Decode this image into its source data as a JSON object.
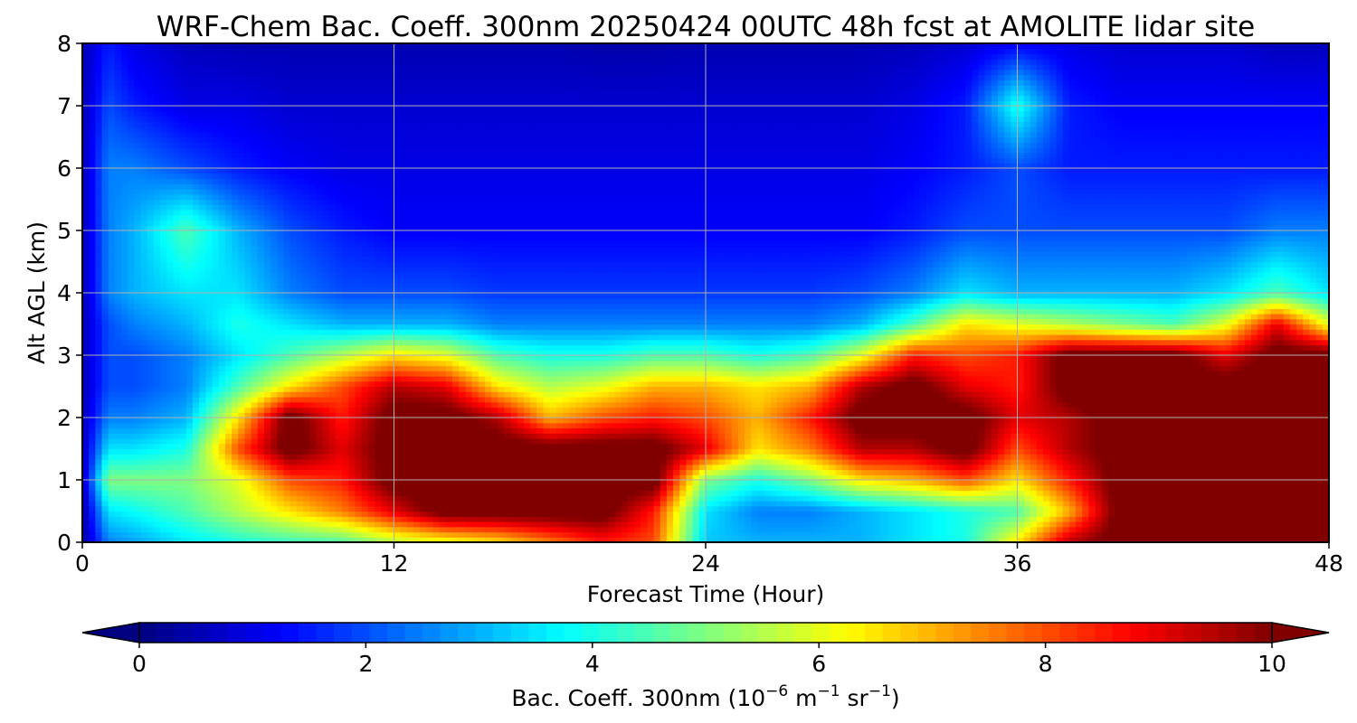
{
  "chart_data": {
    "type": "heatmap",
    "title": "WRF-Chem Bac. Coeff. 300nm  20250424 00UTC 48h fcst at AMOLITE lidar site",
    "xlabel": "Forecast Time (Hour)",
    "ylabel": "Alt AGL (km)",
    "xlim": [
      0,
      48
    ],
    "ylim": [
      0,
      8
    ],
    "x_ticks": [
      0,
      12,
      24,
      36,
      48
    ],
    "y_ticks": [
      0,
      1,
      2,
      3,
      4,
      5,
      6,
      7,
      8
    ],
    "grid": true,
    "colormap": "jet",
    "colorbar": {
      "label_main": "Bac. Coeff. 300nm  (10",
      "exp1": "−6",
      "label_mid": " m",
      "exp2": "−1",
      "label_end": " sr",
      "exp3": "−1",
      "label_close": ")",
      "min": 0,
      "max": 10,
      "ticks": [
        0,
        2,
        4,
        6,
        8,
        10
      ],
      "extend": "both",
      "orientation": "horizontal"
    },
    "x_hours": [
      0,
      1,
      2,
      4,
      6,
      8,
      10,
      12,
      14,
      16,
      18,
      20,
      22,
      24,
      26,
      28,
      30,
      32,
      34,
      36,
      38,
      40,
      42,
      44,
      46,
      48
    ],
    "altitudes_km": [
      0,
      0.5,
      1,
      1.5,
      2,
      2.5,
      3,
      3.5,
      4,
      5,
      6,
      7,
      8
    ],
    "values": [
      [
        0.3,
        2.5,
        2.8,
        3.5,
        4.0,
        4.3,
        4.5,
        5.5,
        6.0,
        6.5,
        7.5,
        8.5,
        8.0,
        3.2,
        3.0,
        3.0,
        3.0,
        3.5,
        4.0,
        6.5,
        9.5,
        10.5,
        10.5,
        10.5,
        10.5,
        10.5
      ],
      [
        0.3,
        3.5,
        3.8,
        4.5,
        5.5,
        6.5,
        7.5,
        9.0,
        10.5,
        10.5,
        10.5,
        10.5,
        8.5,
        3.5,
        2.5,
        2.5,
        3.0,
        3.5,
        4.0,
        4.5,
        7.0,
        10.5,
        10.5,
        10.5,
        10.5,
        10.5
      ],
      [
        0.5,
        5.0,
        5.0,
        5.0,
        6.0,
        8.0,
        8.5,
        10.5,
        10.5,
        10.5,
        10.5,
        10.5,
        10.5,
        5.0,
        4.0,
        5.0,
        6.5,
        7.0,
        8.0,
        6.5,
        8.5,
        10.5,
        10.5,
        10.5,
        10.5,
        10.5
      ],
      [
        0.5,
        3.5,
        3.5,
        4.0,
        8.0,
        10.5,
        9.0,
        10.5,
        10.5,
        10.5,
        10.5,
        10.5,
        10.5,
        9.0,
        6.5,
        7.5,
        9.5,
        9.5,
        10.5,
        8.0,
        9.5,
        10.5,
        10.5,
        10.5,
        10.5,
        10.5
      ],
      [
        0.5,
        2.5,
        2.5,
        3.0,
        6.5,
        10.5,
        8.5,
        10.5,
        10.5,
        9.5,
        7.0,
        8.0,
        8.5,
        8.0,
        7.0,
        8.5,
        10.5,
        10.5,
        10.5,
        9.0,
        9.5,
        10.5,
        10.5,
        10.5,
        10.5,
        10.5
      ],
      [
        0.5,
        2.0,
        2.0,
        2.5,
        4.5,
        6.5,
        8.0,
        9.5,
        9.0,
        6.5,
        5.5,
        6.0,
        7.0,
        7.0,
        6.5,
        7.0,
        9.5,
        10.5,
        9.0,
        8.5,
        10.5,
        10.5,
        10.5,
        10.5,
        10.5,
        10.5
      ],
      [
        0.5,
        2.0,
        2.0,
        2.5,
        3.5,
        4.5,
        5.5,
        6.5,
        6.0,
        4.5,
        4.0,
        4.0,
        4.5,
        4.5,
        4.0,
        4.5,
        6.0,
        8.5,
        8.0,
        8.5,
        10.5,
        10.5,
        10.5,
        9.0,
        10.5,
        10.5
      ],
      [
        0.5,
        2.0,
        2.5,
        3.0,
        4.0,
        3.5,
        3.0,
        3.0,
        3.0,
        2.5,
        2.5,
        2.5,
        2.5,
        2.5,
        2.5,
        2.5,
        3.0,
        4.5,
        6.5,
        6.0,
        5.5,
        5.0,
        4.5,
        6.0,
        9.0,
        6.0
      ],
      [
        0.5,
        2.5,
        3.0,
        3.5,
        3.5,
        2.5,
        2.0,
        2.0,
        2.0,
        1.8,
        1.8,
        1.8,
        1.8,
        1.8,
        1.8,
        1.8,
        2.0,
        2.5,
        3.5,
        3.0,
        3.0,
        3.0,
        3.0,
        3.5,
        4.5,
        3.5
      ],
      [
        0.5,
        2.5,
        3.0,
        4.5,
        3.0,
        2.0,
        1.5,
        1.2,
        1.2,
        1.2,
        1.2,
        1.2,
        1.2,
        1.2,
        1.2,
        1.2,
        1.2,
        1.5,
        2.0,
        2.0,
        2.0,
        2.0,
        2.0,
        2.0,
        2.5,
        2.5
      ],
      [
        0.5,
        2.5,
        2.5,
        2.0,
        1.5,
        1.2,
        1.0,
        1.0,
        1.0,
        1.0,
        1.0,
        1.0,
        1.0,
        1.0,
        1.0,
        1.0,
        1.0,
        1.2,
        1.5,
        2.0,
        1.5,
        1.5,
        1.5,
        1.5,
        1.5,
        1.5
      ],
      [
        0.5,
        2.0,
        1.5,
        1.0,
        1.0,
        0.8,
        0.8,
        0.8,
        0.8,
        0.8,
        0.8,
        0.8,
        0.8,
        0.8,
        0.8,
        0.8,
        0.8,
        1.0,
        1.5,
        4.0,
        1.5,
        1.2,
        1.2,
        1.2,
        1.2,
        1.2
      ],
      [
        0.5,
        1.5,
        1.0,
        0.6,
        0.5,
        0.5,
        0.5,
        0.5,
        0.5,
        0.5,
        0.5,
        0.4,
        0.4,
        0.5,
        0.5,
        0.5,
        0.5,
        0.6,
        0.8,
        1.2,
        1.0,
        0.8,
        0.8,
        0.8,
        0.6,
        0.6
      ]
    ]
  }
}
